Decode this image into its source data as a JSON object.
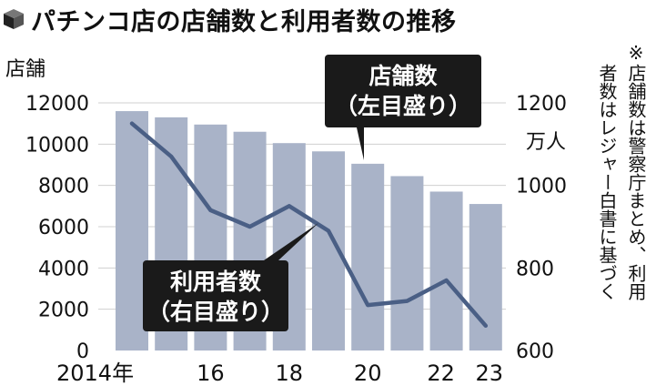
{
  "title": "パチンコ店の店舗数と利用者数の推移",
  "note": [
    "※店舗数は警察庁まとめ、利用",
    "者数はレジャー白書に基づく"
  ],
  "chart_data": {
    "type": "bar+line",
    "x": [
      2014,
      2015,
      2016,
      2017,
      2018,
      2019,
      2020,
      2021,
      2022,
      2023
    ],
    "xtick_labels": [
      {
        "x": 2014,
        "label": "2014年"
      },
      {
        "x": 2016,
        "label": "16"
      },
      {
        "x": 2018,
        "label": "18"
      },
      {
        "x": 2020,
        "label": "20"
      },
      {
        "x": 2022,
        "label": "22"
      },
      {
        "x": 2023,
        "label": "23"
      }
    ],
    "left_axis": {
      "title": "店舗",
      "ylim": [
        0,
        12000
      ],
      "ticks": [
        0,
        2000,
        4000,
        6000,
        8000,
        10000,
        12000
      ]
    },
    "right_axis": {
      "title": "万人",
      "ylim": [
        600,
        1200
      ],
      "ticks": [
        600,
        800,
        1000,
        1200
      ]
    },
    "series": [
      {
        "type": "bar",
        "axis": "left",
        "color": "#a9b3c8",
        "values": [
          11600,
          11300,
          10950,
          10600,
          10050,
          9650,
          9050,
          8450,
          7700,
          7100
        ]
      },
      {
        "type": "line",
        "axis": "right",
        "color": "#4a5f85",
        "values": [
          1150,
          1070,
          940,
          900,
          950,
          890,
          710,
          720,
          770,
          660
        ]
      }
    ],
    "callouts": [
      {
        "lines": [
          "店舗数",
          "（左目盛り）"
        ],
        "target": "bars"
      },
      {
        "lines": [
          "利用者数",
          "（右目盛り）"
        ],
        "target": "line"
      }
    ]
  }
}
